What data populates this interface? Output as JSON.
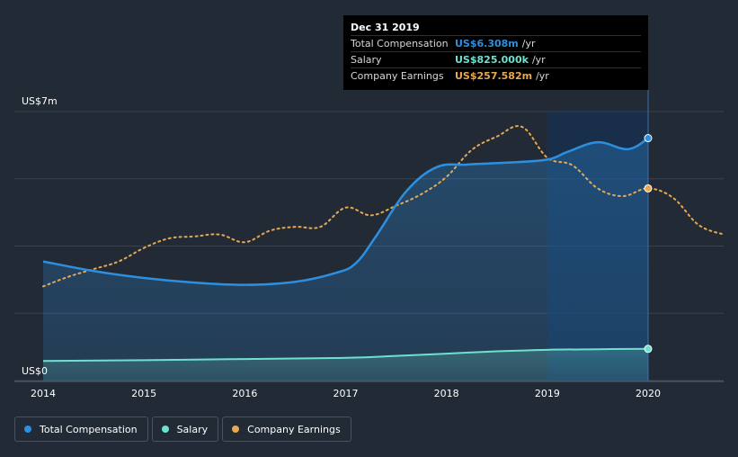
{
  "colors": {
    "background": "#222a35",
    "total": "#2d8fe0",
    "salary": "#6fe0cf",
    "earnings": "#e8a850",
    "grid": "#3a4250",
    "highlight": "#13335a"
  },
  "tooltip": {
    "title": "Dec 31 2019",
    "rows": [
      {
        "label": "Total Compensation",
        "value": "US$6.308m",
        "unit": "/yr",
        "color": "#2d8fe0"
      },
      {
        "label": "Salary",
        "value": "US$825.000k",
        "unit": "/yr",
        "color": "#6fe0cf"
      },
      {
        "label": "Company Earnings",
        "value": "US$257.582m",
        "unit": "/yr",
        "color": "#e8a850"
      }
    ]
  },
  "legend": {
    "total_label": "Total Compensation",
    "salary_label": "Salary",
    "earnings_label": "Company Earnings"
  },
  "chart_data": {
    "type": "line",
    "title": "",
    "xlabel": "",
    "ylabel": "",
    "ylim": [
      0,
      7
    ],
    "xlim": [
      2014,
      2020.75
    ],
    "y_tick_labels": [
      {
        "value": 7,
        "label": "US$7m"
      },
      {
        "value": 0,
        "label": "US$0"
      }
    ],
    "x_ticks": [
      2014,
      2015,
      2016,
      2017,
      2018,
      2019,
      2020
    ],
    "x_tick_labels": [
      "2014",
      "2015",
      "2016",
      "2017",
      "2018",
      "2019",
      "2020"
    ],
    "highlight_range": [
      2019,
      2020
    ],
    "series": [
      {
        "name": "Total Compensation",
        "unit": "US$m",
        "color_key": "total",
        "x": [
          2014,
          2014.5,
          2015,
          2015.5,
          2016,
          2016.5,
          2016.9,
          2017.1,
          2017.3,
          2017.6,
          2017.9,
          2018.2,
          2018.6,
          2019,
          2019.2,
          2019.5,
          2019.8,
          2020
        ],
        "values": [
          3.1,
          2.85,
          2.67,
          2.55,
          2.49,
          2.57,
          2.8,
          3.05,
          3.75,
          4.92,
          5.55,
          5.62,
          5.67,
          5.75,
          5.95,
          6.2,
          6.02,
          6.308
        ]
      },
      {
        "name": "Salary",
        "unit": "US$m",
        "color_key": "salary",
        "x": [
          2014,
          2015,
          2016,
          2017,
          2017.5,
          2018,
          2018.5,
          2019,
          2019.5,
          2020
        ],
        "values": [
          0.51,
          0.53,
          0.56,
          0.59,
          0.64,
          0.7,
          0.76,
          0.8,
          0.815,
          0.825
        ]
      },
      {
        "name": "Company Earnings",
        "unit": "index",
        "color_key": "earnings",
        "x": [
          2014,
          2014.25,
          2014.5,
          2014.75,
          2015,
          2015.25,
          2015.5,
          2015.75,
          2016,
          2016.25,
          2016.5,
          2016.75,
          2017,
          2017.25,
          2017.5,
          2017.75,
          2018,
          2018.25,
          2018.5,
          2018.75,
          2019,
          2019.25,
          2019.5,
          2019.75,
          2020,
          2020.25,
          2020.5,
          2020.75
        ],
        "values": [
          2.45,
          2.7,
          2.9,
          3.1,
          3.45,
          3.7,
          3.75,
          3.8,
          3.6,
          3.9,
          4.0,
          4.0,
          4.5,
          4.3,
          4.55,
          4.85,
          5.3,
          6.0,
          6.35,
          6.6,
          5.8,
          5.6,
          5.0,
          4.8,
          5.0,
          4.75,
          4.05,
          3.8
        ]
      }
    ],
    "markers": [
      {
        "series": "Total Compensation",
        "x": 2020,
        "value": 6.308
      },
      {
        "series": "Salary",
        "x": 2020,
        "value": 0.825
      },
      {
        "series": "Company Earnings",
        "x": 2020,
        "value": 5.0
      }
    ]
  }
}
